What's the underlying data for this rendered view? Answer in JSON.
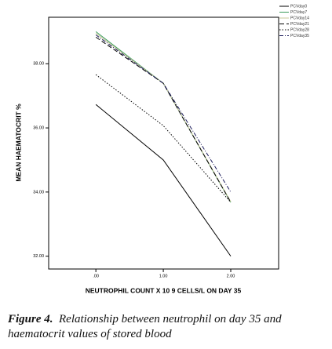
{
  "chart_data": {
    "type": "line",
    "x_label": "NEUTROPHIL COUNT X 10 9 CELLS/L ON DAY 35",
    "y_label": "MEAN HAEMATOCRIT %",
    "x": [
      0,
      1,
      2
    ],
    "xlim": [
      -0.7,
      2.71
    ],
    "xticks": [
      {
        "value": 0,
        "label": ".00"
      },
      {
        "value": 1,
        "label": "1.00"
      },
      {
        "value": 2,
        "label": "2.00"
      }
    ],
    "ylim": [
      31.6,
      39.45
    ],
    "yticks": [
      {
        "value": 32,
        "label": "32.00"
      },
      {
        "value": 34,
        "label": "34.00"
      },
      {
        "value": 36,
        "label": "36.00"
      },
      {
        "value": 38,
        "label": "38.00"
      }
    ],
    "series": [
      {
        "name": "PCVday0",
        "color": "#000000",
        "dash": "none",
        "values": [
          36.73,
          35.0,
          32.0
        ]
      },
      {
        "name": "PCVday7",
        "color": "#3a9a5a",
        "dash": "none",
        "values": [
          39.0,
          37.39,
          33.68
        ]
      },
      {
        "name": "PCVday14",
        "color": "#c8c89a",
        "dash": "none",
        "values": [
          38.95,
          37.39,
          33.7
        ]
      },
      {
        "name": "PCVday21",
        "color": "#000000",
        "dash": "6,3",
        "values": [
          38.83,
          37.39,
          33.68
        ]
      },
      {
        "name": "PCVday28",
        "color": "#000000",
        "dash": "1.5,2",
        "values": [
          37.66,
          36.07,
          33.68
        ]
      },
      {
        "name": "PCVday35",
        "color": "#1a1a5a",
        "dash": "5,2,1,2",
        "values": [
          38.9,
          37.39,
          34.0
        ]
      }
    ],
    "caption_label": "Figure 4.",
    "caption_text": "Relationship between neutrophil on day 35 and haematocrit values of stored blood"
  }
}
